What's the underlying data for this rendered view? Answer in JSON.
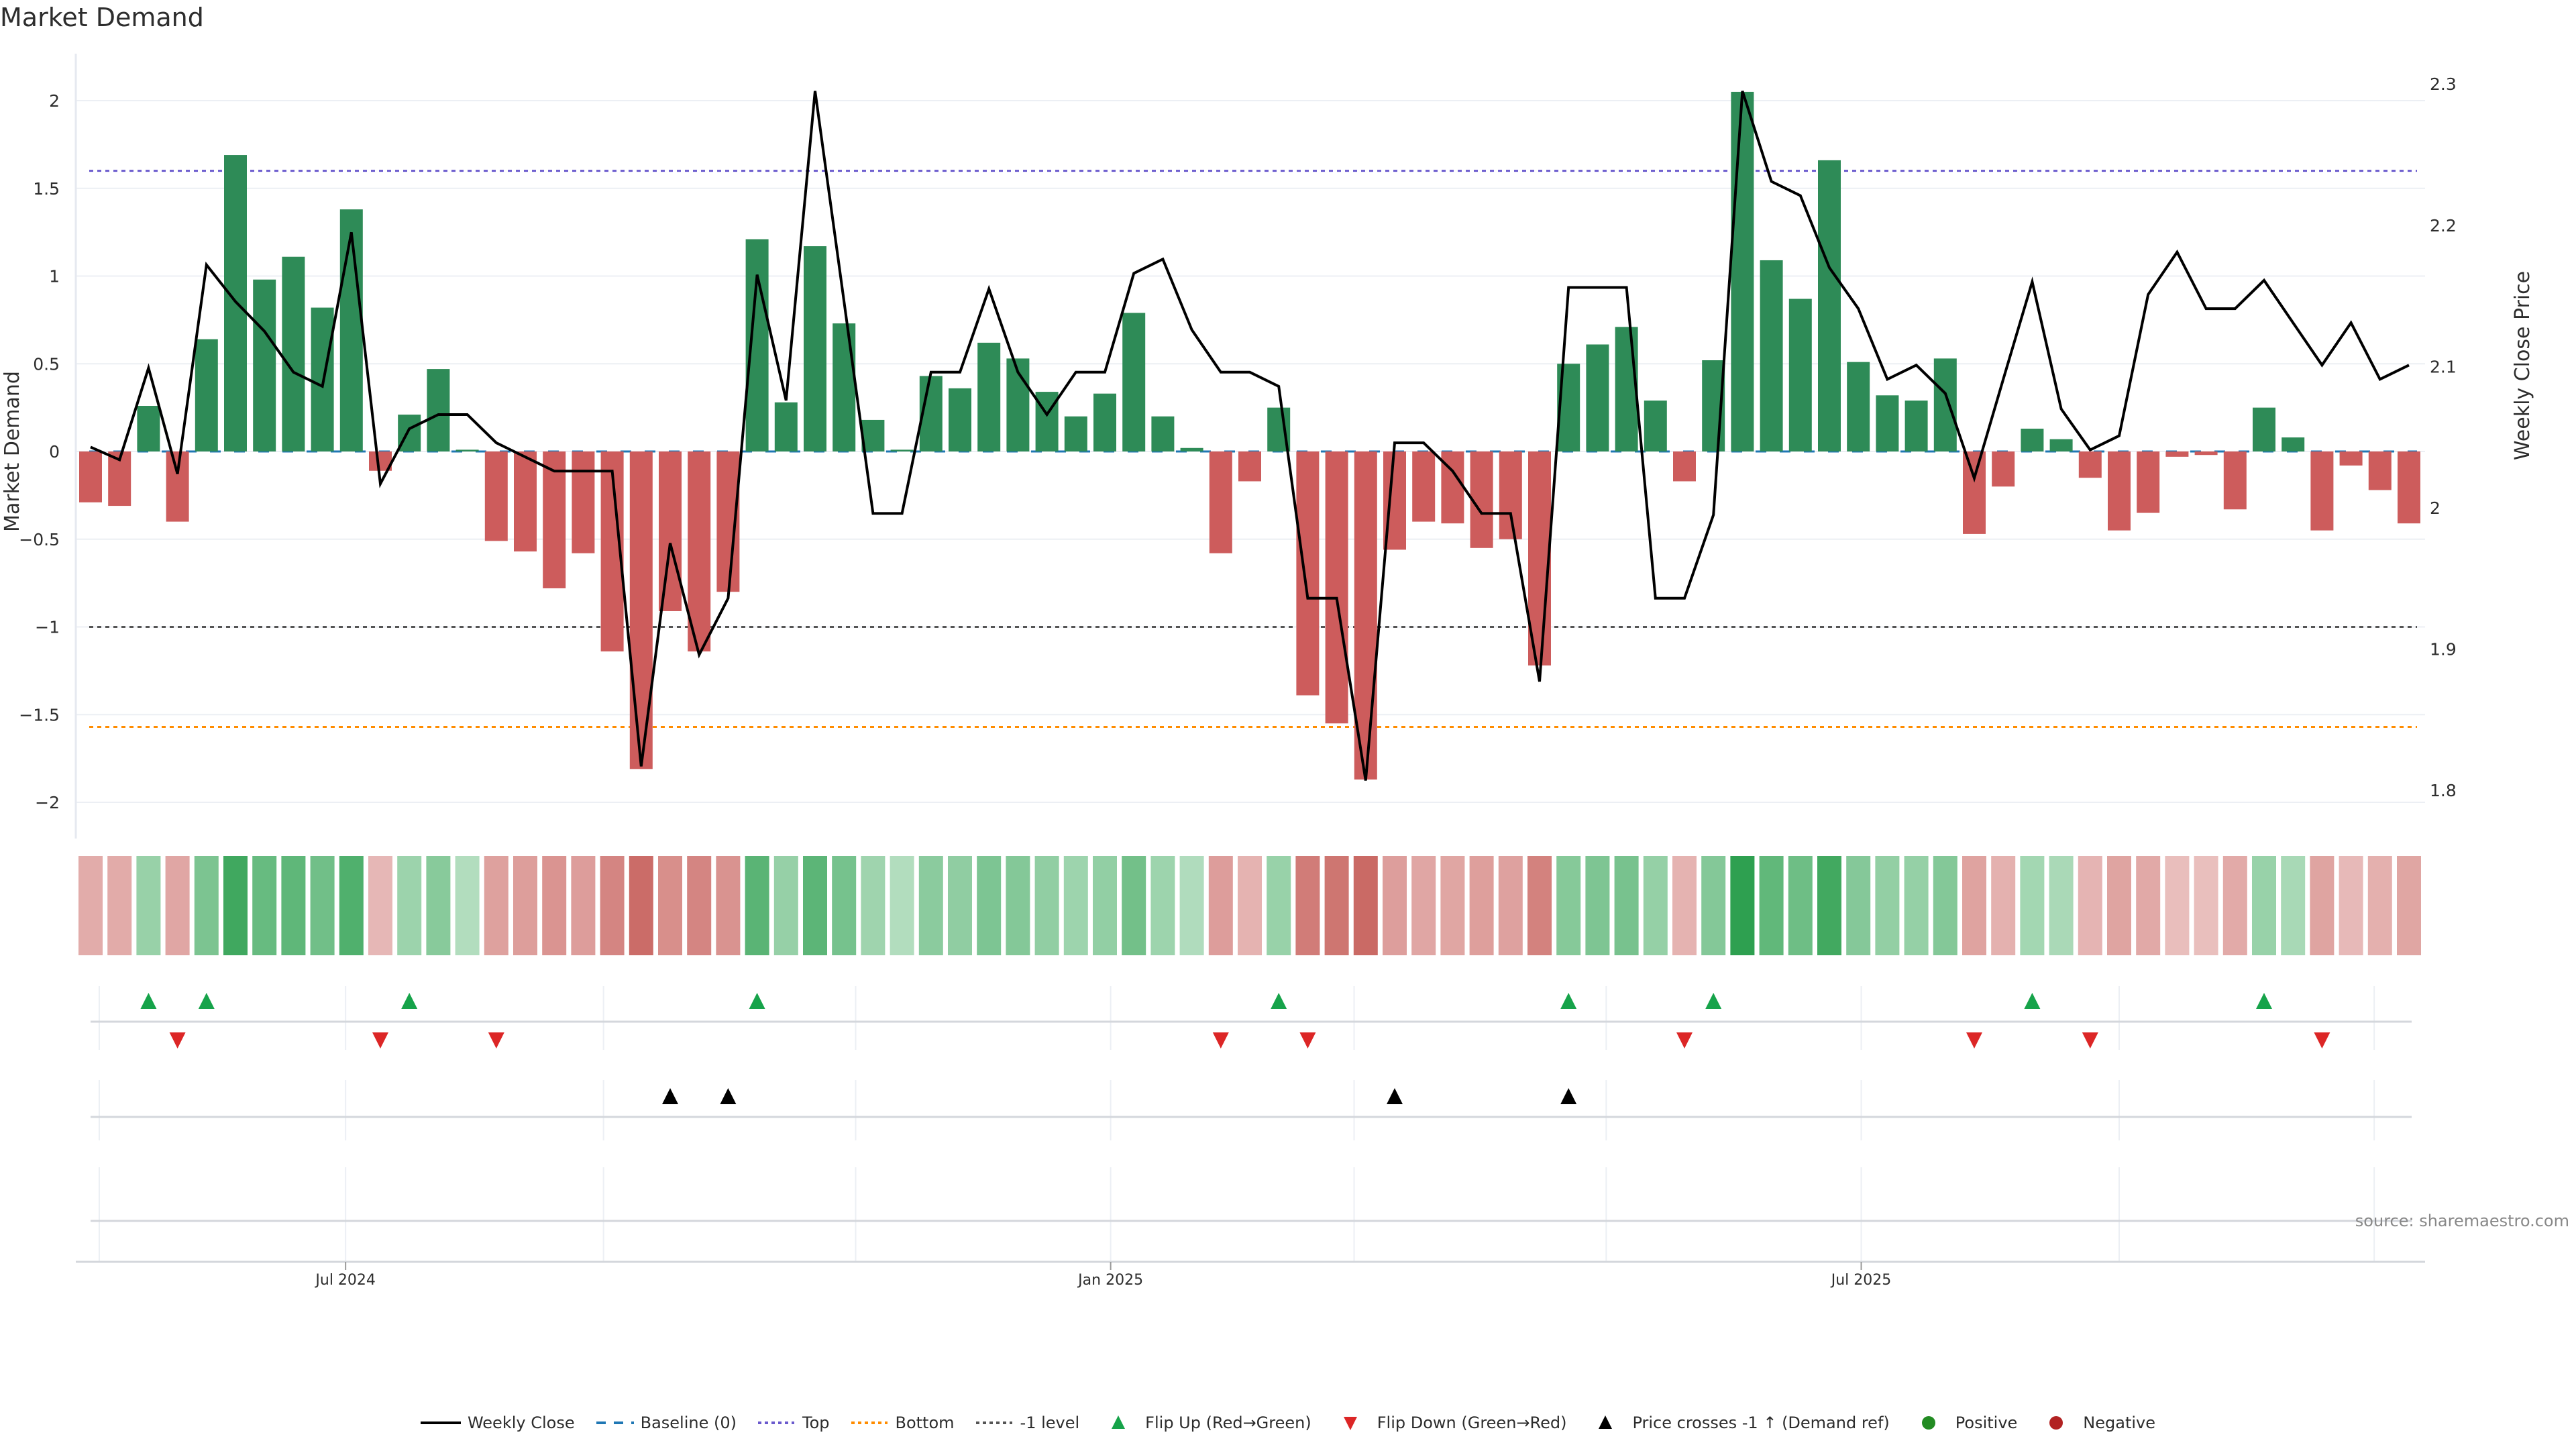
{
  "title": "Market Demand",
  "source": "source: sharemaestro.com",
  "colors": {
    "positive_bar": "#2e8b57",
    "negative_bar": "#cd5c5c",
    "line": "#000000",
    "baseline": "#1f77b4",
    "top": "#6a5acd",
    "bottom": "#ff8c00",
    "minus1": "#555555",
    "flip_up": "#16a34a",
    "flip_down": "#dc2626",
    "price_cross": "#000000",
    "positive_dot": "#228b22",
    "negative_dot": "#b22222"
  },
  "legend": [
    {
      "label": "Weekly Close",
      "symbol": "solid-line"
    },
    {
      "label": "Baseline (0)",
      "symbol": "dash-line"
    },
    {
      "label": "Top",
      "symbol": "dot-line-purple"
    },
    {
      "label": "Bottom",
      "symbol": "dot-line-orange"
    },
    {
      "label": "-1 level",
      "symbol": "dot-line-gray"
    },
    {
      "label": "Flip Up (Red→Green)",
      "symbol": "triangle-up-green"
    },
    {
      "label": "Flip Down (Green→Red)",
      "symbol": "triangle-down-red"
    },
    {
      "label": "Price crosses -1 ↑ (Demand ref)",
      "symbol": "triangle-up-black"
    },
    {
      "label": "Positive",
      "symbol": "circle-green"
    },
    {
      "label": "Negative",
      "symbol": "circle-red"
    }
  ],
  "chart_data": {
    "type": "bar",
    "title": "Market Demand",
    "ylabel": "Market Demand",
    "y2label": "Weekly Close Price",
    "ylim": [
      -2.2,
      2.3
    ],
    "y2lim": [
      1.76,
      2.33
    ],
    "yticks": [
      "2",
      "1.5",
      "1",
      "0.5",
      "0",
      "−0.5",
      "−1",
      "−1.5",
      "−2"
    ],
    "ytick_values": [
      2,
      1.5,
      1,
      0.5,
      0,
      -0.5,
      -1,
      -1.5,
      -2
    ],
    "y2ticks": [
      "2.3",
      "2.2",
      "2.1",
      "2",
      "1.9",
      "1.8"
    ],
    "y2tick_values": [
      2.3,
      2.2,
      2.1,
      2.0,
      1.9,
      1.8
    ],
    "xticks": [
      "Jul 2024",
      "Jan 2025",
      "Jul 2025"
    ],
    "xtick_week_index": [
      9.8,
      36.2,
      62.1
    ],
    "grid_week_index": [
      1.3,
      9.8,
      18.7,
      27.4,
      36.2,
      44.6,
      53.3,
      62.1,
      71.0,
      79.8
    ],
    "reference_lines": {
      "top": 1.6,
      "bottom": -1.57,
      "minus1": -1,
      "baseline": 0
    },
    "series": [
      {
        "name": "Market Demand",
        "values": [
          -0.29,
          -0.31,
          0.26,
          -0.4,
          0.64,
          1.69,
          0.98,
          1.11,
          0.82,
          1.38,
          -0.11,
          0.21,
          0.47,
          0.01,
          -0.51,
          -0.57,
          -0.78,
          -0.58,
          -1.14,
          -1.81,
          -0.91,
          -1.14,
          -0.8,
          1.21,
          0.28,
          1.17,
          0.73,
          0.18,
          0.01,
          0.43,
          0.36,
          0.62,
          0.53,
          0.34,
          0.2,
          0.33,
          0.79,
          0.2,
          0.02,
          -0.58,
          -0.17,
          0.25,
          -1.39,
          -1.55,
          -1.87,
          -0.56,
          -0.4,
          -0.41,
          -0.55,
          -0.5,
          -1.22,
          0.5,
          0.61,
          0.71,
          0.29,
          -0.17,
          0.52,
          2.05,
          1.09,
          0.87,
          1.66,
          0.51,
          0.32,
          0.29,
          0.53,
          -0.47,
          -0.2,
          0.13,
          0.07,
          -0.15,
          -0.45,
          -0.35,
          -0.03,
          -0.02,
          -0.33,
          0.25,
          0.08,
          -0.45,
          -0.08,
          -0.22,
          -0.41
        ]
      },
      {
        "name": "Weekly Close",
        "axis": "y2",
        "values": [
          2.043,
          2.034,
          2.099,
          2.024,
          2.172,
          2.146,
          2.125,
          2.096,
          2.086,
          2.195,
          2.017,
          2.056,
          2.066,
          2.066,
          2.046,
          2.036,
          2.026,
          2.026,
          2.026,
          1.817,
          1.975,
          1.896,
          1.936,
          2.165,
          2.076,
          2.295,
          2.146,
          1.996,
          1.996,
          2.096,
          2.096,
          2.155,
          2.096,
          2.066,
          2.096,
          2.096,
          2.166,
          2.176,
          2.126,
          2.096,
          2.096,
          2.086,
          1.936,
          1.936,
          1.807,
          2.046,
          2.046,
          2.026,
          1.996,
          1.996,
          1.877,
          2.156,
          2.156,
          2.156,
          1.936,
          1.936,
          1.995,
          2.295,
          2.231,
          2.221,
          2.17,
          2.141,
          2.091,
          2.101,
          2.081,
          2.021,
          2.091,
          2.16,
          2.07,
          2.041,
          2.051,
          2.151,
          2.181,
          2.141,
          2.141,
          2.161,
          2.131,
          2.101,
          2.131,
          2.091,
          2.101
        ]
      }
    ],
    "flip_up_weeks": [
      3,
      5,
      12,
      24,
      42,
      52,
      57,
      68,
      76
    ],
    "flip_down_weeks": [
      4,
      11,
      15,
      40,
      43,
      56,
      66,
      70,
      78
    ],
    "price_cross_weeks": [
      21,
      23,
      46,
      52
    ]
  }
}
